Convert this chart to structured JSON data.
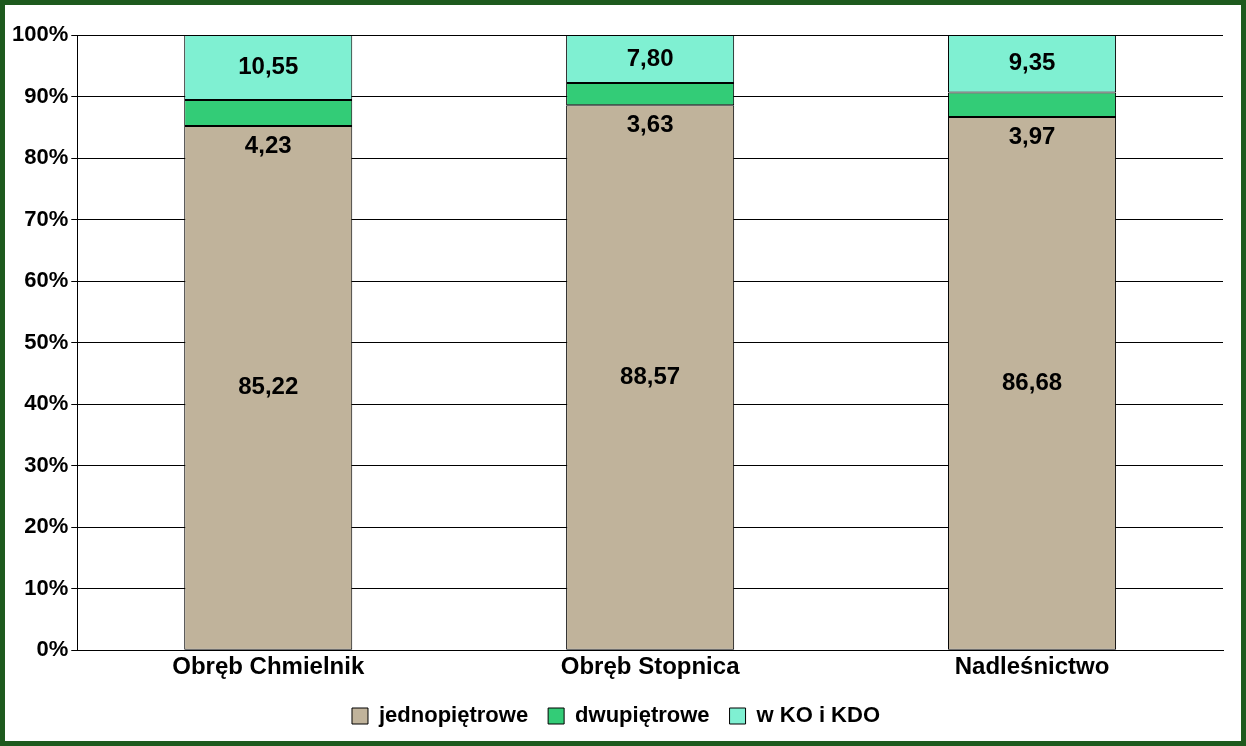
{
  "chart_data": {
    "type": "bar",
    "stacked": true,
    "categories": [
      "Obręb Chmielnik",
      "Obręb Stopnica",
      "Nadleśnictwo"
    ],
    "series": [
      {
        "name": "jednopiętrowe",
        "color": "#c0b39b",
        "values": [
          85.22,
          88.57,
          86.68
        ],
        "value_labels": [
          "85,22",
          "88,57",
          "86,68"
        ]
      },
      {
        "name": "dwupiętrowe",
        "color": "#33cc77",
        "values": [
          4.23,
          3.63,
          3.97
        ],
        "value_labels": [
          "4,23",
          "3,63",
          "3,97"
        ]
      },
      {
        "name": "w KO i KDO",
        "color": "#7ff0d2",
        "values": [
          10.55,
          7.8,
          9.35
        ],
        "value_labels": [
          "10,55",
          "7,80",
          "9,35"
        ]
      }
    ],
    "ylim": [
      0,
      100
    ],
    "yticks": [
      {
        "value": 0,
        "label": "0%"
      },
      {
        "value": 10,
        "label": "10%"
      },
      {
        "value": 20,
        "label": "20%"
      },
      {
        "value": 30,
        "label": "30%"
      },
      {
        "value": 40,
        "label": "40%"
      },
      {
        "value": 50,
        "label": "50%"
      },
      {
        "value": 60,
        "label": "60%"
      },
      {
        "value": 70,
        "label": "70%"
      },
      {
        "value": 80,
        "label": "80%"
      },
      {
        "value": 90,
        "label": "90%"
      },
      {
        "value": 100,
        "label": "100%"
      }
    ],
    "grid": "y",
    "legend": "bottom"
  }
}
